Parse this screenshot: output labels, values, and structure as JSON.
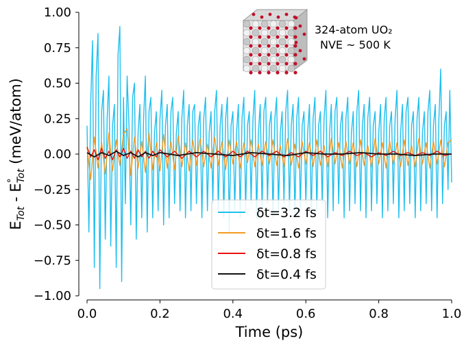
{
  "chart_data": {
    "type": "line",
    "title": "",
    "xlabel": "Time (ps)",
    "ylabel": "E_Tot - E°_Tot (meV/atom)",
    "xlim": [
      0.0,
      1.0
    ],
    "ylim": [
      -1.0,
      1.0
    ],
    "xticks": [
      "0.0",
      "0.2",
      "0.4",
      "0.6",
      "0.8",
      "1.0"
    ],
    "yticks": [
      "−1.00",
      "−0.75",
      "−0.50",
      "−0.25",
      "0.00",
      "0.25",
      "0.50",
      "0.75",
      "1.00"
    ],
    "grid": false,
    "legend_position": "lower-center",
    "annotation": {
      "line1": "324-atom UO₂",
      "line2": "NVE ~ 500 K"
    },
    "series": [
      {
        "name": "δt=3.2 fs",
        "color": "#1ebfee",
        "x": [
          0.0,
          0.005,
          0.01,
          0.015,
          0.02,
          0.025,
          0.03,
          0.035,
          0.04,
          0.045,
          0.05,
          0.055,
          0.06,
          0.065,
          0.07,
          0.075,
          0.08,
          0.085,
          0.09,
          0.095,
          0.1,
          0.105,
          0.11,
          0.115,
          0.12,
          0.125,
          0.13,
          0.135,
          0.14,
          0.145,
          0.15,
          0.155,
          0.16,
          0.165,
          0.17,
          0.175,
          0.18,
          0.185,
          0.19,
          0.195,
          0.2,
          0.205,
          0.21,
          0.215,
          0.22,
          0.225,
          0.23,
          0.235,
          0.24,
          0.245,
          0.25,
          0.255,
          0.26,
          0.265,
          0.27,
          0.275,
          0.28,
          0.285,
          0.29,
          0.295,
          0.3,
          0.305,
          0.31,
          0.315,
          0.32,
          0.325,
          0.33,
          0.335,
          0.34,
          0.345,
          0.35,
          0.355,
          0.36,
          0.365,
          0.37,
          0.375,
          0.38,
          0.385,
          0.39,
          0.395,
          0.4,
          0.405,
          0.41,
          0.415,
          0.42,
          0.425,
          0.43,
          0.435,
          0.44,
          0.445,
          0.45,
          0.455,
          0.46,
          0.465,
          0.47,
          0.475,
          0.48,
          0.485,
          0.49,
          0.495,
          0.5,
          0.505,
          0.51,
          0.515,
          0.52,
          0.525,
          0.53,
          0.535,
          0.54,
          0.545,
          0.55,
          0.555,
          0.56,
          0.565,
          0.57,
          0.575,
          0.58,
          0.585,
          0.59,
          0.595,
          0.6,
          0.605,
          0.61,
          0.615,
          0.62,
          0.625,
          0.63,
          0.635,
          0.64,
          0.645,
          0.65,
          0.655,
          0.66,
          0.665,
          0.67,
          0.675,
          0.68,
          0.685,
          0.69,
          0.695,
          0.7,
          0.705,
          0.71,
          0.715,
          0.72,
          0.725,
          0.73,
          0.735,
          0.74,
          0.745,
          0.75,
          0.755,
          0.76,
          0.765,
          0.77,
          0.775,
          0.78,
          0.785,
          0.79,
          0.795,
          0.8,
          0.805,
          0.81,
          0.815,
          0.82,
          0.825,
          0.83,
          0.835,
          0.84,
          0.845,
          0.85,
          0.855,
          0.86,
          0.865,
          0.87,
          0.875,
          0.88,
          0.885,
          0.89,
          0.895,
          0.9,
          0.905,
          0.91,
          0.915,
          0.92,
          0.925,
          0.93,
          0.935,
          0.94,
          0.945,
          0.95,
          0.955,
          0.96,
          0.965,
          0.97,
          0.975,
          0.98,
          0.985,
          0.99,
          0.995,
          1.0
        ],
        "y": [
          0.2,
          -0.55,
          0.35,
          0.8,
          -0.8,
          0.55,
          0.85,
          -0.95,
          0.3,
          0.45,
          -0.6,
          0.25,
          0.55,
          -0.65,
          0.2,
          0.35,
          -0.8,
          0.7,
          0.9,
          -0.9,
          0.4,
          -0.35,
          0.55,
          0.2,
          -0.5,
          0.4,
          0.5,
          -0.6,
          0.15,
          0.35,
          -0.45,
          0.25,
          0.55,
          -0.55,
          0.3,
          0.4,
          -0.45,
          0.15,
          0.3,
          -0.4,
          0.25,
          0.45,
          -0.5,
          0.2,
          0.35,
          -0.45,
          0.3,
          0.4,
          -0.35,
          0.15,
          0.3,
          -0.4,
          0.25,
          0.45,
          -0.45,
          0.2,
          0.35,
          -0.4,
          0.3,
          0.35,
          -0.35,
          0.2,
          0.3,
          -0.45,
          0.25,
          0.4,
          -0.4,
          0.15,
          0.3,
          -0.35,
          0.3,
          0.45,
          -0.4,
          0.2,
          0.35,
          -0.45,
          0.25,
          0.4,
          -0.55,
          0.2,
          0.3,
          -0.4,
          0.15,
          0.35,
          -0.45,
          0.25,
          0.4,
          -0.4,
          0.2,
          0.3,
          -0.35,
          0.25,
          0.45,
          -0.45,
          0.15,
          0.35,
          -0.4,
          0.3,
          0.4,
          -0.35,
          0.2,
          0.3,
          -0.45,
          0.25,
          0.4,
          -0.4,
          0.15,
          0.3,
          -0.35,
          0.3,
          0.45,
          -0.4,
          0.2,
          0.35,
          -0.45,
          0.25,
          0.4,
          -0.4,
          0.2,
          0.3,
          -0.35,
          0.15,
          0.35,
          -0.45,
          0.25,
          0.4,
          -0.4,
          0.2,
          0.3,
          -0.35,
          0.25,
          0.45,
          -0.45,
          0.15,
          0.35,
          -0.4,
          0.3,
          0.4,
          -0.35,
          0.2,
          0.3,
          -0.45,
          0.25,
          0.4,
          -0.4,
          0.15,
          0.3,
          -0.35,
          0.3,
          0.45,
          -0.4,
          0.2,
          0.35,
          -0.45,
          0.25,
          0.4,
          -0.4,
          0.2,
          0.3,
          -0.35,
          0.15,
          0.35,
          -0.45,
          0.25,
          0.4,
          -0.4,
          0.2,
          0.3,
          -0.35,
          0.25,
          0.45,
          -0.45,
          0.15,
          0.35,
          -0.4,
          0.3,
          0.4,
          -0.35,
          0.2,
          0.3,
          -0.45,
          0.25,
          0.4,
          -0.4,
          0.15,
          0.3,
          -0.35,
          0.3,
          0.45,
          -0.4,
          0.2,
          0.35,
          -0.45,
          0.25,
          0.6,
          -0.35,
          0.2,
          0.3,
          -0.25,
          0.45,
          -0.2
        ]
      },
      {
        "name": "δt=1.6 fs",
        "color": "#f39a20",
        "x": [
          0.0,
          0.01,
          0.02,
          0.03,
          0.04,
          0.05,
          0.06,
          0.07,
          0.08,
          0.09,
          0.1,
          0.11,
          0.12,
          0.13,
          0.14,
          0.15,
          0.16,
          0.17,
          0.18,
          0.19,
          0.2,
          0.21,
          0.22,
          0.23,
          0.24,
          0.25,
          0.26,
          0.27,
          0.28,
          0.29,
          0.3,
          0.31,
          0.32,
          0.33,
          0.34,
          0.35,
          0.36,
          0.37,
          0.38,
          0.39,
          0.4,
          0.41,
          0.42,
          0.43,
          0.44,
          0.45,
          0.46,
          0.47,
          0.48,
          0.49,
          0.5,
          0.51,
          0.52,
          0.53,
          0.54,
          0.55,
          0.56,
          0.57,
          0.58,
          0.59,
          0.6,
          0.61,
          0.62,
          0.63,
          0.64,
          0.65,
          0.66,
          0.67,
          0.68,
          0.69,
          0.7,
          0.71,
          0.72,
          0.73,
          0.74,
          0.75,
          0.76,
          0.77,
          0.78,
          0.79,
          0.8,
          0.81,
          0.82,
          0.83,
          0.84,
          0.85,
          0.86,
          0.87,
          0.88,
          0.89,
          0.9,
          0.91,
          0.92,
          0.93,
          0.94,
          0.95,
          0.96,
          0.97,
          0.98,
          0.99,
          1.0
        ],
        "y": [
          0.05,
          -0.18,
          0.12,
          -0.1,
          0.08,
          -0.14,
          0.15,
          -0.12,
          0.1,
          -0.08,
          0.14,
          0.18,
          -0.15,
          0.12,
          -0.1,
          0.09,
          -0.13,
          0.15,
          -0.11,
          0.08,
          -0.12,
          0.14,
          -0.1,
          0.09,
          -0.11,
          0.13,
          -0.09,
          0.08,
          -0.12,
          0.1,
          -0.08,
          0.11,
          -0.09,
          0.07,
          -0.1,
          0.12,
          -0.08,
          0.09,
          -0.11,
          0.1,
          -0.07,
          0.09,
          -0.1,
          0.08,
          -0.06,
          0.1,
          -0.09,
          0.07,
          -0.08,
          0.09,
          -0.07,
          0.1,
          -0.08,
          0.06,
          -0.09,
          0.11,
          -0.08,
          0.07,
          -0.1,
          0.09,
          -0.07,
          0.08,
          -0.09,
          0.1,
          -0.08,
          0.06,
          -0.09,
          0.11,
          -0.07,
          0.08,
          -0.1,
          0.09,
          -0.07,
          0.08,
          -0.09,
          0.1,
          -0.08,
          0.06,
          -0.09,
          0.11,
          -0.07,
          0.08,
          -0.1,
          0.09,
          -0.07,
          0.08,
          -0.09,
          0.1,
          -0.08,
          0.06,
          -0.09,
          0.11,
          -0.07,
          0.08,
          -0.1,
          0.09,
          -0.07,
          0.1,
          -0.09,
          0.08,
          0.1
        ]
      },
      {
        "name": "δt=0.8 fs",
        "color": "#e8120c",
        "x": [
          0.0,
          0.01,
          0.02,
          0.03,
          0.04,
          0.05,
          0.06,
          0.07,
          0.08,
          0.09,
          0.1,
          0.11,
          0.12,
          0.13,
          0.14,
          0.15,
          0.16,
          0.17,
          0.18,
          0.19,
          0.2,
          0.22,
          0.24,
          0.26,
          0.28,
          0.3,
          0.32,
          0.34,
          0.36,
          0.38,
          0.4,
          0.42,
          0.44,
          0.46,
          0.48,
          0.5,
          0.52,
          0.54,
          0.56,
          0.58,
          0.6,
          0.62,
          0.64,
          0.66,
          0.68,
          0.7,
          0.72,
          0.74,
          0.76,
          0.78,
          0.8,
          0.82,
          0.84,
          0.86,
          0.88,
          0.9,
          0.92,
          0.94,
          0.96,
          0.98,
          1.0
        ],
        "y": [
          0.05,
          -0.02,
          0.03,
          -0.04,
          0.04,
          -0.03,
          0.02,
          -0.04,
          0.03,
          -0.02,
          0.04,
          -0.03,
          0.02,
          -0.03,
          0.03,
          -0.02,
          0.02,
          -0.03,
          0.02,
          -0.02,
          0.03,
          -0.02,
          0.02,
          -0.03,
          0.02,
          -0.02,
          0.02,
          -0.02,
          0.02,
          -0.02,
          0.02,
          -0.02,
          0.02,
          -0.02,
          0.02,
          -0.01,
          0.02,
          -0.02,
          0.01,
          -0.02,
          0.02,
          -0.01,
          0.02,
          -0.02,
          0.01,
          -0.01,
          0.02,
          -0.01,
          0.01,
          -0.02,
          0.01,
          -0.01,
          0.02,
          -0.01,
          0.01,
          -0.01,
          0.01,
          -0.01,
          0.02,
          -0.01,
          0.0
        ]
      },
      {
        "name": "δt=0.4 fs",
        "color": "#111111",
        "x": [
          0.0,
          0.02,
          0.04,
          0.06,
          0.08,
          0.1,
          0.12,
          0.14,
          0.16,
          0.18,
          0.2,
          0.25,
          0.3,
          0.35,
          0.4,
          0.45,
          0.5,
          0.55,
          0.6,
          0.65,
          0.7,
          0.75,
          0.8,
          0.85,
          0.9,
          0.95,
          1.0
        ],
        "y": [
          0.01,
          -0.02,
          0.01,
          -0.01,
          0.02,
          -0.01,
          0.01,
          -0.02,
          0.01,
          -0.01,
          0.01,
          -0.01,
          0.01,
          0.0,
          -0.01,
          0.01,
          0.0,
          -0.01,
          0.01,
          0.0,
          0.0,
          0.01,
          0.0,
          0.0,
          -0.01,
          0.0,
          0.0
        ]
      }
    ]
  }
}
